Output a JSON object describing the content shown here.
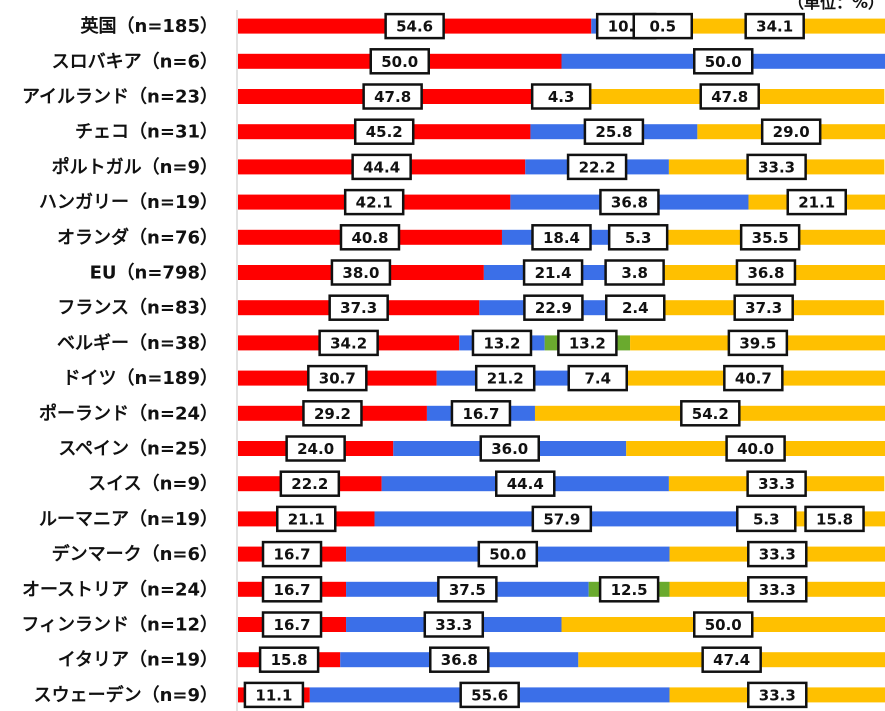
{
  "chart_data": {
    "type": "bar",
    "orientation": "horizontal",
    "stacked": true,
    "normalized": true,
    "unit": "（単位：%）",
    "xlim": [
      0,
      100
    ],
    "grid": false,
    "legend": "none",
    "categories": [
      "英国（n=185）",
      "スロバキア（n=6）",
      "アイルランド（n=23）",
      "チェコ（n=31）",
      "ポルトガル（n=9）",
      "ハンガリー（n=19）",
      "オランダ（n=76）",
      "EU（n=798）",
      "フランス（n=83）",
      "ベルギー（n=38）",
      "ドイツ（n=189）",
      "ポーランド（n=24）",
      "スペイン（n=25）",
      "スイス（n=9）",
      "ルーマニア（n=19）",
      "デンマーク（n=6）",
      "オーストリア（n=24）",
      "フィンランド（n=12）",
      "イタリア（n=19）",
      "スウェーデン（n=9）"
    ],
    "series": [
      {
        "color": "#ff0000",
        "values": [
          54.6,
          50.0,
          47.8,
          45.2,
          44.4,
          42.1,
          40.8,
          38.0,
          37.3,
          34.2,
          30.7,
          29.2,
          24.0,
          22.2,
          21.1,
          16.7,
          16.7,
          16.7,
          15.8,
          11.1
        ]
      },
      {
        "color": "#3b6fe8",
        "values": [
          10.8,
          50.0,
          4.3,
          25.8,
          22.2,
          36.8,
          18.4,
          21.4,
          22.9,
          13.2,
          21.2,
          16.7,
          36.0,
          44.4,
          57.9,
          50.0,
          37.5,
          33.3,
          36.8,
          55.6
        ]
      },
      {
        "color": "#6aaa2e",
        "values": [
          0.5,
          0,
          0,
          0,
          0,
          0,
          5.3,
          3.8,
          2.4,
          13.2,
          7.4,
          0,
          0,
          0,
          5.3,
          0,
          12.5,
          0,
          0,
          0
        ]
      },
      {
        "color": "#ffc000",
        "values": [
          34.1,
          0,
          47.8,
          29.0,
          33.3,
          21.1,
          35.5,
          36.8,
          37.3,
          39.5,
          40.7,
          54.2,
          40.0,
          33.3,
          15.8,
          33.3,
          33.3,
          50.0,
          47.4,
          33.3
        ]
      }
    ]
  }
}
